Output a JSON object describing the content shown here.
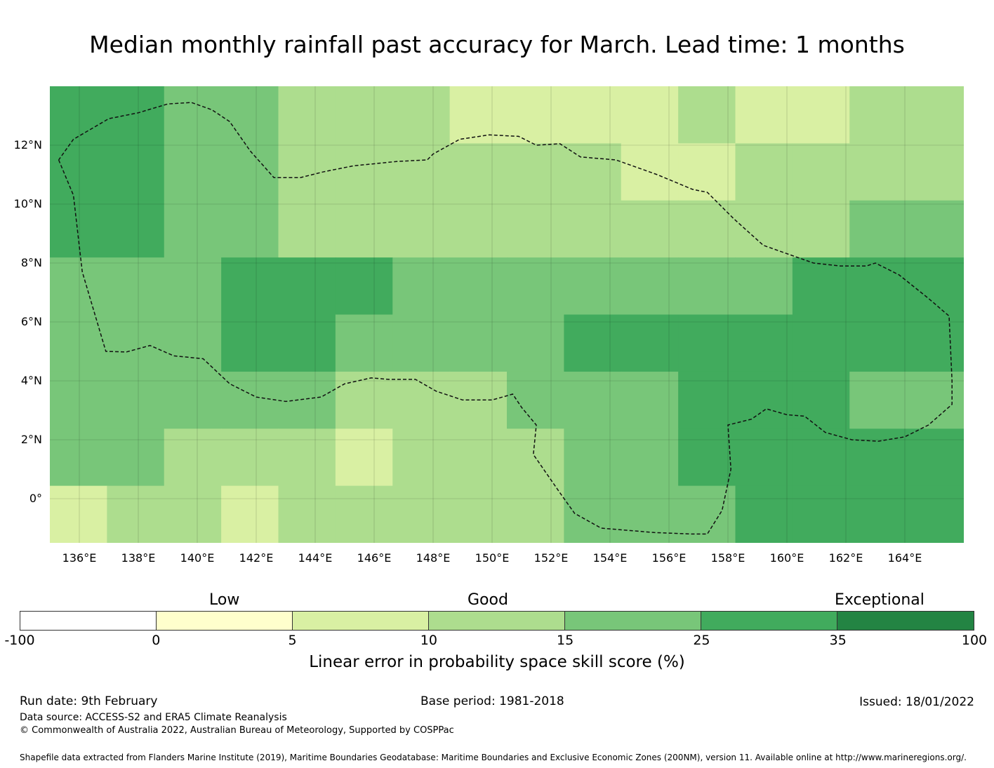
{
  "title": "Median monthly rainfall past accuracy for March. Lead time: 1 months",
  "map": {
    "lat_range": [
      -1.5,
      14
    ],
    "lon_range": [
      135,
      166
    ],
    "lat_ticks": [
      {
        "value": 12,
        "label": "12°N"
      },
      {
        "value": 10,
        "label": "10°N"
      },
      {
        "value": 8,
        "label": "8°N"
      },
      {
        "value": 6,
        "label": "6°N"
      },
      {
        "value": 4,
        "label": "4°N"
      },
      {
        "value": 2,
        "label": "2°N"
      },
      {
        "value": 0,
        "label": "0°"
      }
    ],
    "lon_ticks": [
      {
        "value": 136,
        "label": "136°E"
      },
      {
        "value": 138,
        "label": "138°E"
      },
      {
        "value": 140,
        "label": "140°E"
      },
      {
        "value": 142,
        "label": "142°E"
      },
      {
        "value": 144,
        "label": "144°E"
      },
      {
        "value": 146,
        "label": "146°E"
      },
      {
        "value": 148,
        "label": "148°E"
      },
      {
        "value": 150,
        "label": "150°E"
      },
      {
        "value": 152,
        "label": "152°E"
      },
      {
        "value": 154,
        "label": "154°E"
      },
      {
        "value": 156,
        "label": "156°E"
      },
      {
        "value": 158,
        "label": "158°E"
      },
      {
        "value": 160,
        "label": "160°E"
      },
      {
        "value": 162,
        "label": "162°E"
      },
      {
        "value": 164,
        "label": "164°E"
      }
    ],
    "grid_cols": 16,
    "grid_rows": 8,
    "category_grid": [
      [
        5,
        5,
        4,
        4,
        3,
        3,
        3,
        2,
        2,
        2,
        2,
        3,
        2,
        2,
        3,
        3
      ],
      [
        5,
        5,
        4,
        4,
        3,
        3,
        3,
        3,
        3,
        3,
        2,
        2,
        3,
        3,
        3,
        3
      ],
      [
        5,
        5,
        4,
        4,
        3,
        3,
        3,
        3,
        3,
        3,
        3,
        3,
        3,
        3,
        4,
        4
      ],
      [
        4,
        4,
        4,
        5,
        5,
        5,
        4,
        4,
        4,
        4,
        4,
        4,
        4,
        5,
        5,
        5
      ],
      [
        4,
        4,
        4,
        5,
        5,
        4,
        4,
        4,
        4,
        5,
        5,
        5,
        5,
        5,
        5,
        5
      ],
      [
        4,
        4,
        4,
        4,
        4,
        3,
        3,
        3,
        4,
        4,
        4,
        5,
        5,
        5,
        4,
        4
      ],
      [
        4,
        4,
        3,
        3,
        3,
        2,
        3,
        3,
        3,
        4,
        4,
        5,
        5,
        5,
        5,
        5
      ],
      [
        2,
        3,
        3,
        2,
        3,
        3,
        3,
        3,
        3,
        4,
        4,
        4,
        5,
        5,
        5,
        5
      ]
    ],
    "eez_boundary": [
      [
        135.3,
        11.5
      ],
      [
        135.8,
        10.3
      ],
      [
        136.1,
        7.7
      ],
      [
        136.9,
        5.0
      ],
      [
        137.6,
        4.98
      ],
      [
        138.4,
        5.2
      ],
      [
        139.2,
        4.85
      ],
      [
        140.2,
        4.75
      ],
      [
        141.1,
        3.9
      ],
      [
        142.0,
        3.45
      ],
      [
        143.0,
        3.3
      ],
      [
        144.2,
        3.45
      ],
      [
        145.0,
        3.9
      ],
      [
        145.9,
        4.1
      ],
      [
        146.5,
        4.05
      ],
      [
        147.4,
        4.05
      ],
      [
        148.1,
        3.65
      ],
      [
        149.0,
        3.35
      ],
      [
        150.0,
        3.35
      ],
      [
        150.7,
        3.55
      ],
      [
        151.0,
        3.1
      ],
      [
        151.5,
        2.5
      ],
      [
        151.4,
        1.5
      ],
      [
        152.3,
        0.2
      ],
      [
        152.8,
        -0.5
      ],
      [
        153.7,
        -1.0
      ],
      [
        155.5,
        -1.15
      ],
      [
        156.8,
        -1.2
      ],
      [
        157.3,
        -1.2
      ],
      [
        157.8,
        -0.4
      ],
      [
        158.1,
        1.0
      ],
      [
        158.0,
        2.5
      ],
      [
        158.8,
        2.7
      ],
      [
        159.3,
        3.05
      ],
      [
        160.0,
        2.85
      ],
      [
        160.6,
        2.8
      ],
      [
        161.3,
        2.25
      ],
      [
        162.2,
        2.0
      ],
      [
        163.1,
        1.95
      ],
      [
        164.0,
        2.1
      ],
      [
        164.8,
        2.5
      ],
      [
        165.6,
        3.2
      ],
      [
        165.6,
        4.0
      ],
      [
        165.5,
        6.2
      ],
      [
        164.8,
        6.8
      ],
      [
        163.8,
        7.6
      ],
      [
        163.0,
        8.0
      ],
      [
        162.7,
        7.9
      ],
      [
        161.8,
        7.9
      ],
      [
        160.9,
        8.0
      ],
      [
        159.2,
        8.6
      ],
      [
        158.2,
        9.5
      ],
      [
        157.3,
        10.4
      ],
      [
        156.8,
        10.5
      ],
      [
        155.6,
        11.0
      ],
      [
        154.2,
        11.5
      ],
      [
        153.0,
        11.6
      ],
      [
        152.3,
        12.05
      ],
      [
        151.5,
        12.0
      ],
      [
        150.9,
        12.3
      ],
      [
        149.9,
        12.35
      ],
      [
        148.9,
        12.2
      ],
      [
        148.0,
        11.7
      ],
      [
        147.8,
        11.5
      ],
      [
        146.8,
        11.45
      ],
      [
        145.3,
        11.3
      ],
      [
        144.3,
        11.1
      ],
      [
        143.5,
        10.9
      ],
      [
        142.6,
        10.9
      ],
      [
        141.8,
        11.8
      ],
      [
        141.1,
        12.8
      ],
      [
        140.5,
        13.2
      ],
      [
        139.8,
        13.45
      ],
      [
        139.0,
        13.4
      ],
      [
        138.0,
        13.1
      ],
      [
        137.0,
        12.9
      ],
      [
        135.8,
        12.2
      ],
      [
        135.3,
        11.5
      ]
    ]
  },
  "colorbar": {
    "ticks": [
      "-100",
      "0",
      "5",
      "10",
      "15",
      "25",
      "35",
      "100"
    ],
    "colors": [
      "#ffffff",
      "#ffffcc",
      "#d9f0a3",
      "#addd8e",
      "#78c679",
      "#41ab5d",
      "#238443"
    ],
    "categories": [
      "Low",
      "Good",
      "Exceptional"
    ],
    "title": "Linear error in probability space skill score (%)"
  },
  "footer": {
    "run_date": "Run date: 9th February",
    "base_period": "Base period: 1981-2018",
    "issued": "Issued: 18/01/2022",
    "data_source": "Data source: ACCESS-S2 and ERA5 Climate Reanalysis",
    "copyright": "© Commonwealth of Australia 2022, Australian Bureau of Meteorology, Supported by COSPPac",
    "shapefile": "Shapefile data extracted from Flanders Marine Institute (2019), Maritime Boundaries Geodatabase: Maritime Boundaries and Exclusive Economic Zones (200NM), version 11. Available online at http://www.marineregions.org/."
  }
}
